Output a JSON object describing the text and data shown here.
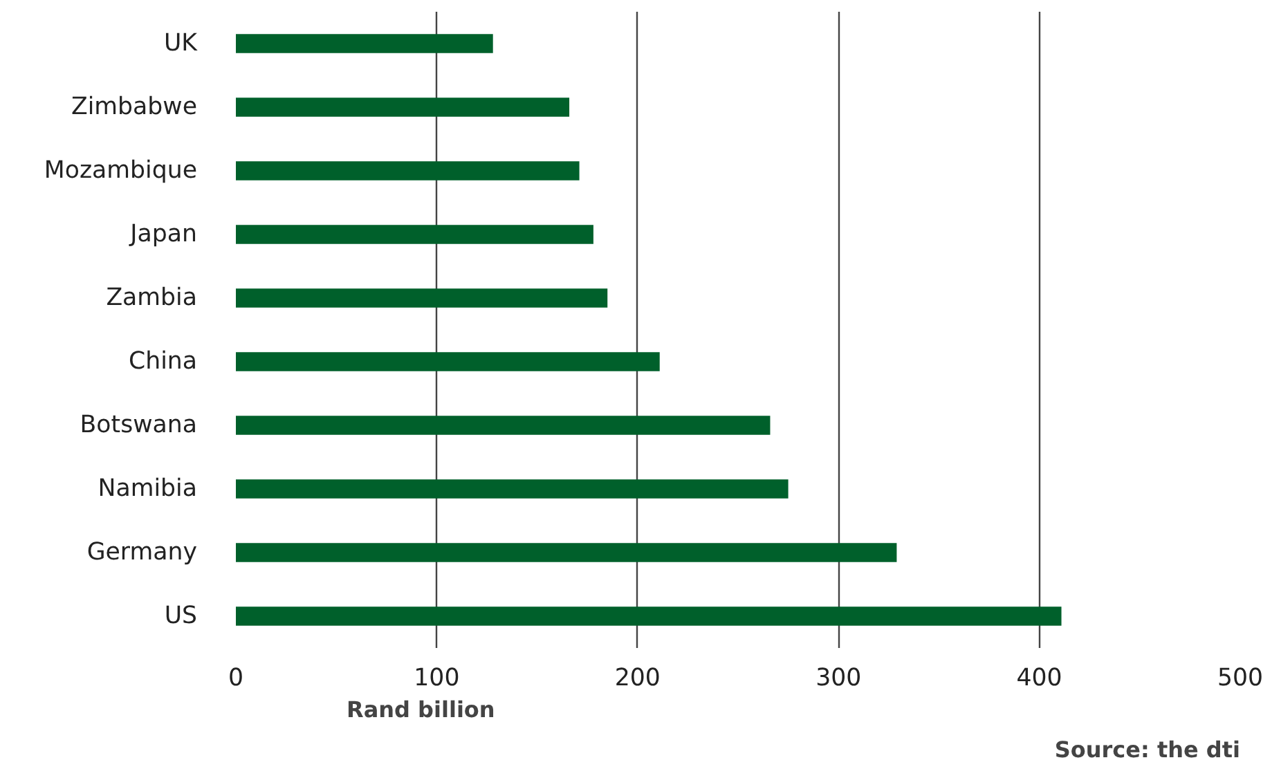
{
  "chart_data": {
    "type": "bar",
    "orientation": "horizontal",
    "xlabel": "Rand billion",
    "categories": [
      "UK",
      "Zimbabwe",
      "Mozambique",
      "Japan",
      "Zambia",
      "China",
      "Botswana",
      "Namibia",
      "Germany",
      "US"
    ],
    "values": [
      128,
      166,
      171,
      178,
      185,
      211,
      266,
      275,
      329,
      411
    ],
    "color": "#00602b",
    "xlim": [
      0,
      500
    ],
    "xticks": [
      0,
      100,
      200,
      300,
      400,
      500
    ],
    "grid": "x",
    "annotations": [
      "Source: the dti"
    ]
  }
}
